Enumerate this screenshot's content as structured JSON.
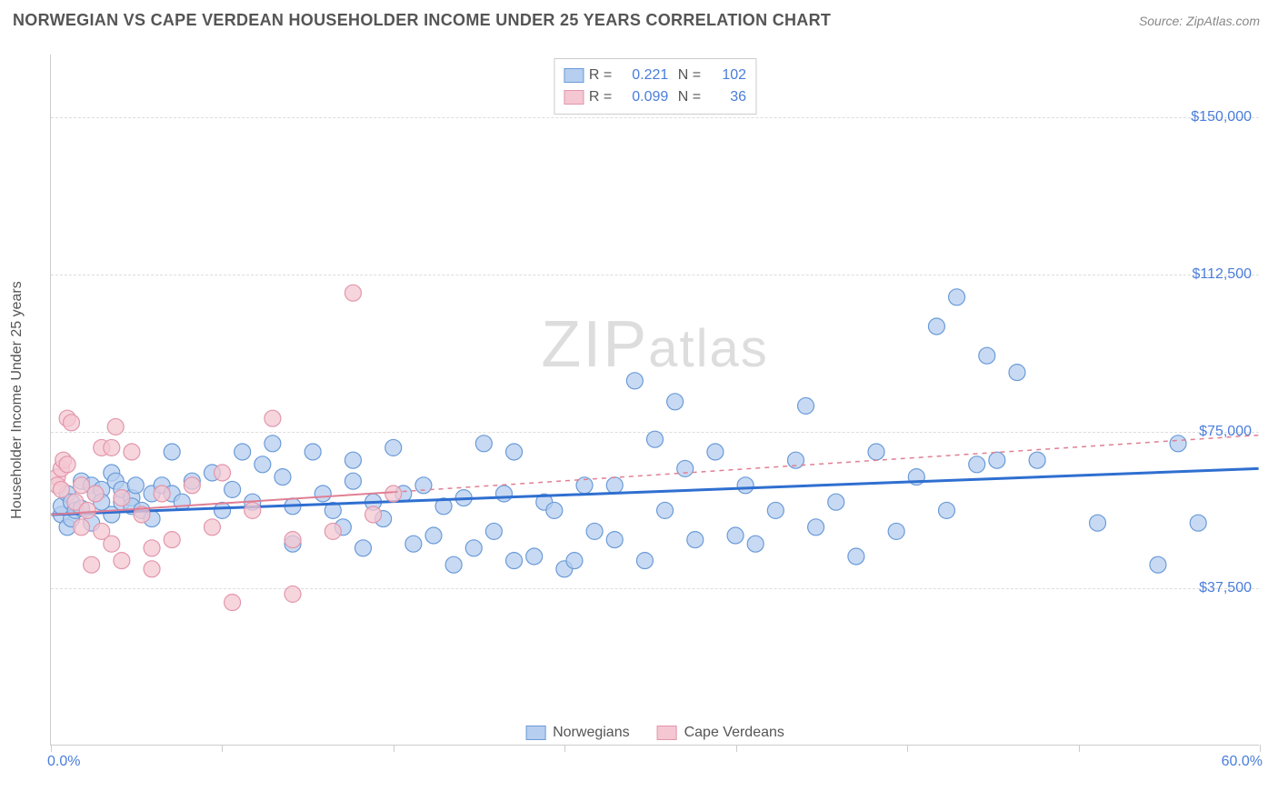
{
  "title": "NORWEGIAN VS CAPE VERDEAN HOUSEHOLDER INCOME UNDER 25 YEARS CORRELATION CHART",
  "source": "Source: ZipAtlas.com",
  "ylabel": "Householder Income Under 25 years",
  "watermark_bold": "ZIP",
  "watermark_thin": "atlas",
  "chart": {
    "type": "scatter",
    "xlim": [
      0,
      60
    ],
    "ylim": [
      0,
      165000
    ],
    "x_min_label": "0.0%",
    "x_max_label": "60.0%",
    "xtick_positions_pct": [
      0,
      8.5,
      17,
      25.5,
      34,
      42.5,
      51,
      60
    ],
    "y_gridlines": [
      37500,
      75000,
      112500,
      150000
    ],
    "y_gridline_labels": [
      "$37,500",
      "$75,000",
      "$112,500",
      "$150,000"
    ],
    "background_color": "#ffffff",
    "grid_color": "#dddddd",
    "series": [
      {
        "name": "Norwegians",
        "fill": "#b6ceef",
        "stroke": "#6a9bd8",
        "line_color": "#2f6fd0",
        "line_width": 3,
        "line_dash": "none",
        "marker_radius": 9,
        "marker_opacity": 0.75,
        "R": "0.221",
        "N": "102",
        "trend": {
          "x1": 0,
          "y1": 55000,
          "x2": 60,
          "y2": 66000
        },
        "points": [
          [
            0.5,
            55000
          ],
          [
            0.5,
            57000
          ],
          [
            0.8,
            60000
          ],
          [
            0.8,
            52000
          ],
          [
            1,
            54000
          ],
          [
            1,
            58000
          ],
          [
            1.2,
            56000
          ],
          [
            1.5,
            56500
          ],
          [
            1.5,
            63000
          ],
          [
            2,
            62000
          ],
          [
            2,
            53000
          ],
          [
            2.2,
            60000
          ],
          [
            2.5,
            61000
          ],
          [
            2.5,
            58000
          ],
          [
            3,
            55000
          ],
          [
            3,
            65000
          ],
          [
            3.2,
            63000
          ],
          [
            3.5,
            58000
          ],
          [
            3.5,
            61000
          ],
          [
            4,
            59000
          ],
          [
            4,
            57000
          ],
          [
            4.2,
            62000
          ],
          [
            4.5,
            56000
          ],
          [
            5,
            60000
          ],
          [
            5,
            54000
          ],
          [
            5.5,
            62000
          ],
          [
            6,
            70000
          ],
          [
            6,
            60000
          ],
          [
            6.5,
            58000
          ],
          [
            7,
            63000
          ],
          [
            8,
            65000
          ],
          [
            8.5,
            56000
          ],
          [
            9,
            61000
          ],
          [
            9.5,
            70000
          ],
          [
            10,
            58000
          ],
          [
            10.5,
            67000
          ],
          [
            11,
            72000
          ],
          [
            11.5,
            64000
          ],
          [
            12,
            57000
          ],
          [
            12,
            48000
          ],
          [
            13,
            70000
          ],
          [
            13.5,
            60000
          ],
          [
            14,
            56000
          ],
          [
            14.5,
            52000
          ],
          [
            15,
            63000
          ],
          [
            15,
            68000
          ],
          [
            15.5,
            47000
          ],
          [
            16,
            58000
          ],
          [
            16.5,
            54000
          ],
          [
            17,
            71000
          ],
          [
            17.5,
            60000
          ],
          [
            18,
            48000
          ],
          [
            18.5,
            62000
          ],
          [
            19,
            50000
          ],
          [
            19.5,
            57000
          ],
          [
            20,
            43000
          ],
          [
            20.5,
            59000
          ],
          [
            21,
            47000
          ],
          [
            21.5,
            72000
          ],
          [
            22,
            51000
          ],
          [
            22.5,
            60000
          ],
          [
            23,
            44000
          ],
          [
            23,
            70000
          ],
          [
            24,
            45000
          ],
          [
            24.5,
            58000
          ],
          [
            25,
            56000
          ],
          [
            25.5,
            42000
          ],
          [
            26,
            44000
          ],
          [
            26.5,
            62000
          ],
          [
            27,
            51000
          ],
          [
            28,
            49000
          ],
          [
            28,
            62000
          ],
          [
            29,
            87000
          ],
          [
            29.5,
            44000
          ],
          [
            30,
            73000
          ],
          [
            30.5,
            56000
          ],
          [
            31,
            82000
          ],
          [
            31.5,
            66000
          ],
          [
            32,
            49000
          ],
          [
            33,
            70000
          ],
          [
            34,
            50000
          ],
          [
            34.5,
            62000
          ],
          [
            35,
            48000
          ],
          [
            36,
            56000
          ],
          [
            37,
            68000
          ],
          [
            37.5,
            81000
          ],
          [
            38,
            52000
          ],
          [
            39,
            58000
          ],
          [
            40,
            45000
          ],
          [
            41,
            70000
          ],
          [
            42,
            51000
          ],
          [
            43,
            64000
          ],
          [
            44,
            100000
          ],
          [
            44.5,
            56000
          ],
          [
            45,
            107000
          ],
          [
            46,
            67000
          ],
          [
            46.5,
            93000
          ],
          [
            47,
            68000
          ],
          [
            48,
            89000
          ],
          [
            49,
            68000
          ],
          [
            52,
            53000
          ],
          [
            55,
            43000
          ],
          [
            56,
            72000
          ],
          [
            57,
            53000
          ]
        ]
      },
      {
        "name": "Cape Verdeans",
        "fill": "#f4c7d2",
        "stroke": "#e296ab",
        "line_color": "#e07f94",
        "line_width": 2,
        "line_dash": "4 4",
        "marker_radius": 9,
        "marker_opacity": 0.75,
        "R": "0.099",
        "N": "36",
        "trend_solid_until_x": 17,
        "trend": {
          "x1": 0,
          "y1": 55000,
          "x2": 60,
          "y2": 74000
        },
        "points": [
          [
            0.3,
            64000
          ],
          [
            0.3,
            62000
          ],
          [
            0.5,
            66000
          ],
          [
            0.5,
            61000
          ],
          [
            0.6,
            68000
          ],
          [
            0.8,
            67000
          ],
          [
            0.8,
            78000
          ],
          [
            1,
            77000
          ],
          [
            1.2,
            58000
          ],
          [
            1.5,
            52000
          ],
          [
            1.5,
            62000
          ],
          [
            1.8,
            56000
          ],
          [
            2,
            43000
          ],
          [
            2.2,
            60000
          ],
          [
            2.5,
            51000
          ],
          [
            2.5,
            71000
          ],
          [
            3,
            71000
          ],
          [
            3,
            48000
          ],
          [
            3.2,
            76000
          ],
          [
            3.5,
            59000
          ],
          [
            3.5,
            44000
          ],
          [
            4,
            70000
          ],
          [
            4.5,
            55000
          ],
          [
            5,
            47000
          ],
          [
            5,
            42000
          ],
          [
            5.5,
            60000
          ],
          [
            6,
            49000
          ],
          [
            7,
            62000
          ],
          [
            8,
            52000
          ],
          [
            8.5,
            65000
          ],
          [
            9,
            34000
          ],
          [
            10,
            56000
          ],
          [
            11,
            78000
          ],
          [
            12,
            49000
          ],
          [
            12,
            36000
          ],
          [
            14,
            51000
          ],
          [
            15,
            108000
          ],
          [
            16,
            55000
          ],
          [
            17,
            60000
          ]
        ]
      }
    ]
  },
  "legend_bottom": [
    {
      "label": "Norwegians",
      "fill": "#b6ceef",
      "stroke": "#6a9bd8"
    },
    {
      "label": "Cape Verdeans",
      "fill": "#f4c7d2",
      "stroke": "#e296ab"
    }
  ]
}
